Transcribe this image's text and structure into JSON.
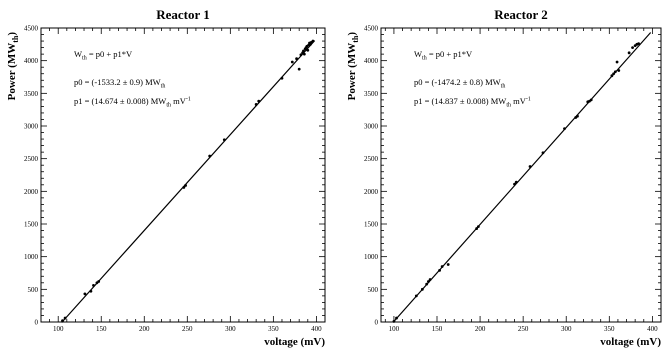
{
  "chart_data": [
    {
      "type": "scatter",
      "title": "Reactor 1",
      "xlabel": "voltage (mV)",
      "ylabel": "Power (MW",
      "ylabel_sub": "th",
      "ylabel_close": ")",
      "xlim": [
        80,
        410
      ],
      "ylim": [
        0,
        4500
      ],
      "xticks": [
        100,
        150,
        200,
        250,
        300,
        350,
        400
      ],
      "yticks": [
        0,
        500,
        1000,
        1500,
        2000,
        2500,
        3000,
        3500,
        4000,
        4500
      ],
      "fit": {
        "p0": -1533.2,
        "p1": 14.674,
        "x_range": [
          104,
          398
        ]
      },
      "annotations": [
        {
          "parts": [
            {
              "t": "W"
            },
            {
              "t": "th",
              "sub": true
            },
            {
              "t": " = p0 + p1*V"
            }
          ]
        },
        {
          "parts": [
            {
              "t": "p0 = (-1533.2 ± 0.9) MW"
            },
            {
              "t": "th",
              "sub": true
            }
          ]
        },
        {
          "parts": [
            {
              "t": "p1 = (14.674 ± 0.008) MW"
            },
            {
              "t": "th",
              "sub": true
            },
            {
              "t": " mV"
            },
            {
              "t": "-1",
              "sup": true
            }
          ]
        }
      ],
      "points": [
        [
          105,
          20
        ],
        [
          108,
          60
        ],
        [
          131,
          430
        ],
        [
          138,
          470
        ],
        [
          141,
          560
        ],
        [
          145,
          600
        ],
        [
          147,
          620
        ],
        [
          246,
          2060
        ],
        [
          248,
          2090
        ],
        [
          276,
          2540
        ],
        [
          293,
          2790
        ],
        [
          330,
          3330
        ],
        [
          333,
          3380
        ],
        [
          360,
          3730
        ],
        [
          372,
          3980
        ],
        [
          377,
          4030
        ],
        [
          380,
          3870
        ],
        [
          382,
          4090
        ],
        [
          384,
          4120
        ],
        [
          385,
          4150
        ],
        [
          386,
          4100
        ],
        [
          387,
          4180
        ],
        [
          388,
          4200
        ],
        [
          389,
          4220
        ],
        [
          390,
          4160
        ],
        [
          391,
          4240
        ],
        [
          392,
          4270
        ],
        [
          393,
          4250
        ],
        [
          394,
          4280
        ],
        [
          396,
          4300
        ]
      ]
    },
    {
      "type": "scatter",
      "title": "Reactor 2",
      "xlabel": "voltage (mV)",
      "ylabel": "Power (MW",
      "ylabel_sub": "th",
      "ylabel_close": ")",
      "xlim": [
        85,
        410
      ],
      "ylim": [
        0,
        4500
      ],
      "xticks": [
        100,
        150,
        200,
        250,
        300,
        350,
        400
      ],
      "yticks": [
        0,
        500,
        1000,
        1500,
        2000,
        2500,
        3000,
        3500,
        4000,
        4500
      ],
      "fit": {
        "p0": -1474.2,
        "p1": 14.837,
        "x_range": [
          99,
          398
        ]
      },
      "annotations": [
        {
          "parts": [
            {
              "t": "W"
            },
            {
              "t": "th",
              "sub": true
            },
            {
              "t": " = p0 + p1*V"
            }
          ]
        },
        {
          "parts": [
            {
              "t": "p0 = (-1474.2 ± 0.8) MW"
            },
            {
              "t": "th",
              "sub": true
            }
          ]
        },
        {
          "parts": [
            {
              "t": "p1 = (14.837 ± 0.008) MW"
            },
            {
              "t": "th",
              "sub": true
            },
            {
              "t": " mV"
            },
            {
              "t": "-1",
              "sup": true
            }
          ]
        }
      ],
      "points": [
        [
          100,
          10
        ],
        [
          103,
          60
        ],
        [
          126,
          400
        ],
        [
          133,
          500
        ],
        [
          138,
          580
        ],
        [
          140,
          620
        ],
        [
          142,
          650
        ],
        [
          153,
          790
        ],
        [
          156,
          850
        ],
        [
          163,
          880
        ],
        [
          196,
          1430
        ],
        [
          198,
          1460
        ],
        [
          240,
          2110
        ],
        [
          242,
          2140
        ],
        [
          258,
          2380
        ],
        [
          273,
          2590
        ],
        [
          298,
          2960
        ],
        [
          311,
          3130
        ],
        [
          313,
          3150
        ],
        [
          325,
          3370
        ],
        [
          327,
          3380
        ],
        [
          329,
          3400
        ],
        [
          353,
          3770
        ],
        [
          355,
          3800
        ],
        [
          357,
          3830
        ],
        [
          359,
          3980
        ],
        [
          361,
          3850
        ],
        [
          373,
          4120
        ],
        [
          377,
          4200
        ],
        [
          380,
          4230
        ],
        [
          382,
          4250
        ],
        [
          384,
          4260
        ]
      ]
    }
  ]
}
